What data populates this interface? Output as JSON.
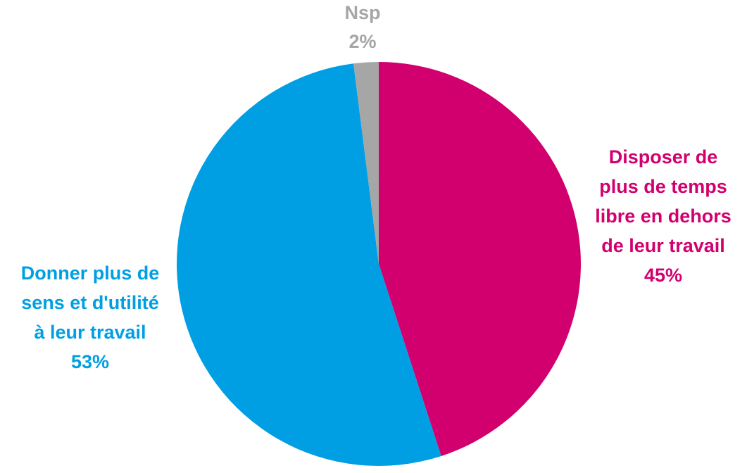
{
  "chart_data": {
    "type": "pie",
    "slices": [
      {
        "name": "Disposer de plus de temps libre en dehors de leur travail",
        "label_lines": [
          "Disposer de",
          "plus de temps",
          "libre en dehors",
          "de leur travail"
        ],
        "value": 45,
        "value_label": "45%",
        "color": "#d2006e"
      },
      {
        "name": "Donner plus de sens et d'utilité à leur travail",
        "label_lines": [
          "Donner plus de",
          "sens et d'utilité",
          "à leur travail"
        ],
        "value": 53,
        "value_label": "53%",
        "color": "#009fe3"
      },
      {
        "name": "Nsp",
        "label_lines": [
          "Nsp"
        ],
        "value": 2,
        "value_label": "2%",
        "color": "#a6a6a6"
      }
    ],
    "start_angle": "12 o'clock",
    "direction": "clockwise",
    "legend": "none"
  }
}
